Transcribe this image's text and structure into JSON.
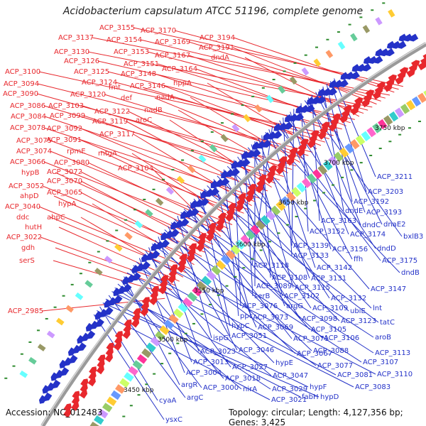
{
  "title": "Acidobacterium capsulatum ATCC 51196, complete genome",
  "accession": "Accession: NC_012483",
  "summary": "Topology: circular; Length: 4,127,356 bp; Genes: 3,425",
  "colors": {
    "forward": "#e8282d",
    "reverse": "#2432c8",
    "backbone": "#888888"
  },
  "ticks": [
    "3750 kbp",
    "3700 kbp",
    "3650 kbp",
    "3600 kbp",
    "3550 kbp",
    "3500 kbp",
    "3450 kbp"
  ],
  "forward_labels": [
    "ACP_3155",
    "ACP_3170",
    "ACP_3194",
    "ACP_3137",
    "ACP_3154",
    "ACP_3169",
    "ACP_3191",
    "ACP_3130",
    "ACP_3153",
    "ACP_3167",
    "dndA",
    "ACP_3126",
    "ACP_3151",
    "ACP_3164",
    "ACP_3125",
    "ACP_3148",
    "ACP_3100",
    "ACP_3124",
    "fmt",
    "ACP_3146",
    "hppA",
    "ACP_3094",
    "ACP_3120",
    "def",
    "nadA",
    "ACP_3090",
    "ACP_3103",
    "nadB",
    "ACP_3086",
    "ACP_3099",
    "ACP_3122",
    "aroC",
    "ACP_3084",
    "ACP_3119",
    "ACP_3078",
    "ACP_3092",
    "ACP_3117",
    "ACP_3091",
    "ACP_3075",
    "rpmE",
    "mtgA",
    "ACP_3074",
    "ACP_3080",
    "ACP_3066",
    "ACP_3104",
    "ACP_3072",
    "hypB",
    "ACP_3070",
    "ACP_3052",
    "ACP_3065",
    "ahpD",
    "hypA",
    "ACP_3040",
    "ddc",
    "ahpC",
    "hutH",
    "ACP_3022",
    "gdh",
    "serS",
    "ACP_2985"
  ],
  "reverse_labels": [
    "ACP_3211",
    "ACP_3203",
    "ACP_3192",
    "dndE",
    "ACP_3193",
    "dnaE2",
    "ACP_3163",
    "dndC",
    "bxlB3",
    "ACP_3152",
    "ACP_3174",
    "ACP_3139",
    "ACP_3156",
    "dndD",
    "ACP_3133",
    "ffh",
    "ACP_3175",
    "ACP_3118",
    "ACP_3142",
    "dndB",
    "ACP_3108",
    "ACP_3131",
    "ACP_3089",
    "ACP_3115",
    "ACP_3147",
    "serB",
    "ACP_3102",
    "ACP_3132",
    "ACP_3076",
    "argG",
    "lnt",
    "ppc",
    "ACP_3109",
    "ubiE",
    "ACP_3073",
    "ACP_3098",
    "ACP_3123",
    "tatC",
    "hypC",
    "ACP_3069",
    "ACP_3105",
    "ACP_3051",
    "ACP_3071",
    "ACP_3106",
    "aroB",
    "ispG",
    "ACP_3088",
    "ACP_3113",
    "ACP_3046",
    "ACP_3067",
    "ACP_3107",
    "ACP_3023",
    "hypE",
    "ACP_3077",
    "ACP_3013",
    "ACP_3027",
    "ACP_3110",
    "ACP_3004",
    "ACP_3047",
    "ACP_3081",
    "ACP_3018",
    "ACP_3083",
    "argR",
    "ACP_3000",
    "nirA",
    "ACP_3029",
    "hypF",
    "argC",
    "fabH",
    "hypD",
    "cyaA",
    "ACP_3021",
    "ysxC"
  ]
}
